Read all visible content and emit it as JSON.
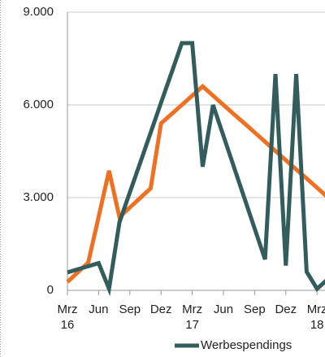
{
  "chart_data": {
    "type": "line",
    "categories": [
      "Mrz 16",
      null,
      null,
      "Jun",
      null,
      null,
      "Sep",
      null,
      null,
      "Dez",
      null,
      null,
      "Mrz 17",
      null,
      null,
      "Jun",
      null,
      null,
      "Sep",
      null,
      null,
      "Dez",
      null,
      null,
      "Mrz 18",
      null
    ],
    "series": [
      {
        "name": "Werbespendings",
        "color": "#335d5d",
        "values": [
          580,
          680,
          780,
          880,
          50,
          2200,
          3170,
          4130,
          5100,
          6070,
          7030,
          8000,
          8000,
          4000,
          6000,
          5000,
          4000,
          3000,
          2000,
          1000,
          7000,
          800,
          7000,
          600,
          50,
          350
        ]
      },
      {
        "color": "#f07022",
        "values": [
          270,
          585,
          900,
          2380,
          3870,
          2370,
          2680,
          2990,
          3300,
          5400,
          5700,
          6000,
          6300,
          6600,
          6300,
          6000,
          5700,
          5410,
          5110,
          4810,
          4510,
          4210,
          3910,
          3620,
          3320,
          3020
        ]
      }
    ],
    "ylim": [
      0,
      9000
    ],
    "yticks": [
      0,
      {
        "value": 3000,
        "label": "3.000"
      },
      {
        "value": 6000,
        "label": "6.000"
      },
      {
        "value": 9000,
        "label": "9.000"
      }
    ],
    "grid": true
  }
}
